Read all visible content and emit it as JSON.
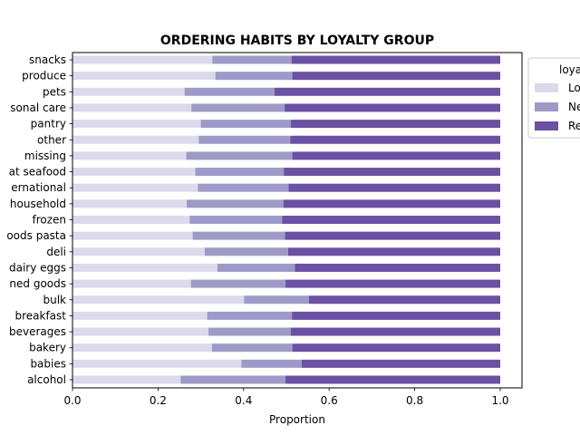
{
  "chart_data": {
    "type": "bar",
    "orientation": "horizontal",
    "stacked": true,
    "title": "ORDERING HABITS BY LOYALTY GROUP",
    "xlabel": "Proportion",
    "ylabel": "",
    "xlim": [
      0,
      1.05
    ],
    "xticks": [
      "0.0",
      "0.2",
      "0.4",
      "0.6",
      "0.8",
      "1.0"
    ],
    "categories": [
      "alcohol",
      "babies",
      "bakery",
      "beverages",
      "breakfast",
      "bulk",
      "canned goods",
      "dairy eggs",
      "deli",
      "dry goods pasta",
      "frozen",
      "household",
      "international",
      "meat seafood",
      "missing",
      "other",
      "pantry",
      "personal care",
      "pets",
      "produce",
      "snacks"
    ],
    "tick_labels": [
      "alcohol",
      "babies",
      "bakery",
      "beverages",
      "breakfast",
      "bulk",
      "ned goods",
      "dairy eggs",
      "deli",
      "oods pasta",
      "frozen",
      "household",
      "ernational",
      "at seafood",
      "missing",
      "other",
      "pantry",
      "sonal care",
      "pets",
      "produce",
      "snacks"
    ],
    "series": [
      {
        "name": "Lo",
        "color": "#dadaeb",
        "values": [
          0.253,
          0.395,
          0.326,
          0.318,
          0.315,
          0.401,
          0.277,
          0.339,
          0.309,
          0.281,
          0.274,
          0.267,
          0.293,
          0.287,
          0.266,
          0.295,
          0.3,
          0.278,
          0.262,
          0.334,
          0.327
        ]
      },
      {
        "name": "Ne",
        "color": "#9e9ac8",
        "values": [
          0.245,
          0.141,
          0.188,
          0.192,
          0.198,
          0.152,
          0.221,
          0.181,
          0.195,
          0.216,
          0.216,
          0.226,
          0.212,
          0.207,
          0.248,
          0.214,
          0.21,
          0.218,
          0.21,
          0.18,
          0.185
        ]
      },
      {
        "name": "Re",
        "color": "#6a51a3",
        "values": [
          0.502,
          0.464,
          0.486,
          0.49,
          0.487,
          0.447,
          0.502,
          0.48,
          0.496,
          0.503,
          0.51,
          0.507,
          0.495,
          0.506,
          0.486,
          0.491,
          0.49,
          0.504,
          0.528,
          0.486,
          0.488
        ]
      }
    ],
    "legend": {
      "title": "loya",
      "placement": "upper-right-outside"
    },
    "grid": false
  }
}
